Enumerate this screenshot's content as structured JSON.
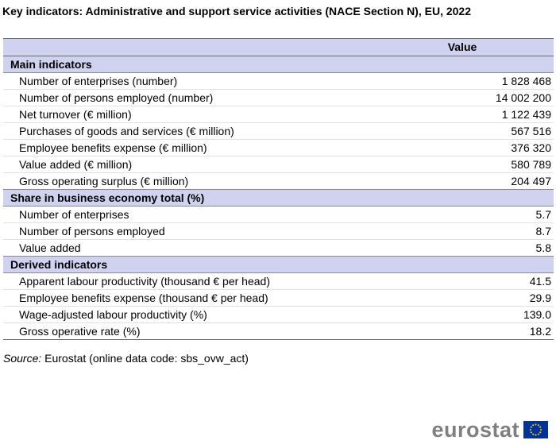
{
  "title": "Key indicators: Administrative and support service activities (NACE Section N), EU, 2022",
  "table": {
    "header_value": "Value",
    "sections": [
      {
        "title": "Main indicators",
        "rows": [
          {
            "label": "Number of enterprises (number)",
            "value": "1 828 468"
          },
          {
            "label": "Number of persons employed (number)",
            "value": "14 002 200"
          },
          {
            "label": "Net turnover (€ million)",
            "value": "1 122 439"
          },
          {
            "label": "Purchases of goods and services (€ million)",
            "value": "567 516"
          },
          {
            "label": "Employee benefits expense (€ million)",
            "value": "376 320"
          },
          {
            "label": "Value added (€ million)",
            "value": "580 789"
          },
          {
            "label": "Gross operating surplus (€ million)",
            "value": "204 497"
          }
        ]
      },
      {
        "title": "Share in business economy total (%)",
        "rows": [
          {
            "label": "Number of enterprises",
            "value": "5.7"
          },
          {
            "label": "Number of persons employed",
            "value": "8.7"
          },
          {
            "label": "Value added",
            "value": "5.8"
          }
        ]
      },
      {
        "title": "Derived indicators",
        "rows": [
          {
            "label": "Apparent labour productivity (thousand € per head)",
            "value": "41.5"
          },
          {
            "label": "Employee benefits expense (thousand € per head)",
            "value": "29.9"
          },
          {
            "label": "Wage-adjusted labour productivity (%)",
            "value": "139.0"
          },
          {
            "label": "Gross operative rate (%)",
            "value": "18.2"
          }
        ]
      }
    ]
  },
  "source": {
    "label": "Source:",
    "text": "Eurostat (online data code: sbs_ovw_act)"
  },
  "logo": {
    "text": "eurostat",
    "flag_color": "#003399",
    "star_color": "#ffcc00"
  }
}
